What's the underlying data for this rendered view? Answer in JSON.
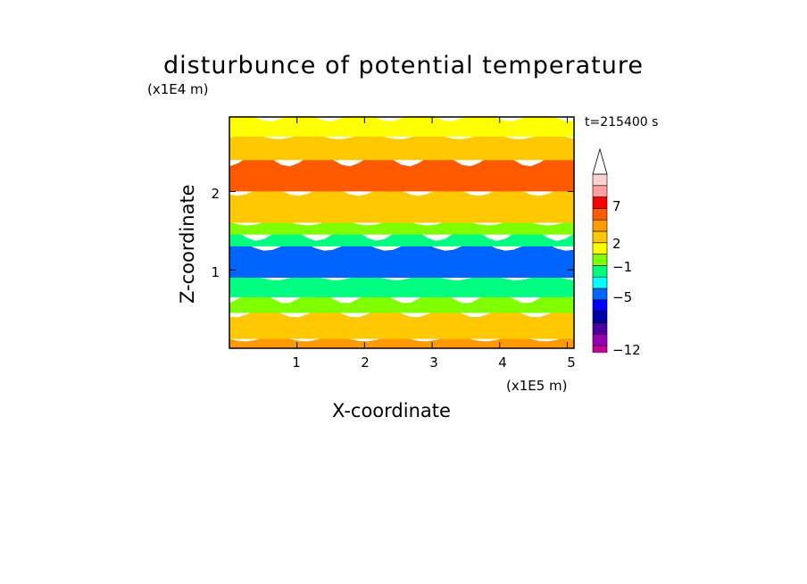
{
  "title": "disturbunce of potential temperature",
  "time_label": "t=215400 s",
  "chart_data": {
    "type": "heatmap",
    "title": "disturbunce of potential temperature",
    "xlabel": "X-coordinate",
    "ylabel": "Z-coordinate",
    "x_unit": "(x1E5 m)",
    "y_unit": "(x1E4 m)",
    "xlim": [
      0,
      5.1
    ],
    "ylim": [
      0,
      2.95
    ],
    "x_ticks": [
      "1",
      "2",
      "3",
      "4",
      "5"
    ],
    "y_ticks": [
      "1",
      "2"
    ],
    "colorbar": {
      "labels": [
        "7",
        "2",
        "−1",
        "−5",
        "−12"
      ],
      "levels": [
        -12,
        -10,
        -8,
        -6,
        -5,
        -4,
        -3,
        -1,
        0,
        1,
        2,
        3,
        5,
        7,
        8,
        9
      ],
      "colors": [
        "#ff00ff",
        "#c4009a",
        "#9a00b4",
        "#4b00a0",
        "#0000a8",
        "#0000ff",
        "#0064ff",
        "#00ffff",
        "#00ff80",
        "#80ff00",
        "#ffff00",
        "#ffc800",
        "#ff9b00",
        "#ff5a00",
        "#ff0000",
        "#ffa0a0",
        "#ffd2d2"
      ],
      "extend": "max"
    },
    "bands": [
      {
        "z": [
          0.0,
          0.12
        ],
        "value": 3
      },
      {
        "z": [
          0.12,
          0.45
        ],
        "value": 2
      },
      {
        "z": [
          0.45,
          0.65
        ],
        "value": 0
      },
      {
        "z": [
          0.65,
          0.9
        ],
        "value": -1
      },
      {
        "z": [
          0.9,
          1.3
        ],
        "value": -4
      },
      {
        "z": [
          1.3,
          1.45
        ],
        "value": -1
      },
      {
        "z": [
          1.45,
          1.6
        ],
        "value": 0
      },
      {
        "z": [
          1.6,
          2.0
        ],
        "value": 2
      },
      {
        "z": [
          2.0,
          2.4
        ],
        "value": 5
      },
      {
        "z": [
          2.4,
          2.7
        ],
        "value": 2
      },
      {
        "z": [
          2.7,
          2.95
        ],
        "value": 1
      }
    ]
  }
}
